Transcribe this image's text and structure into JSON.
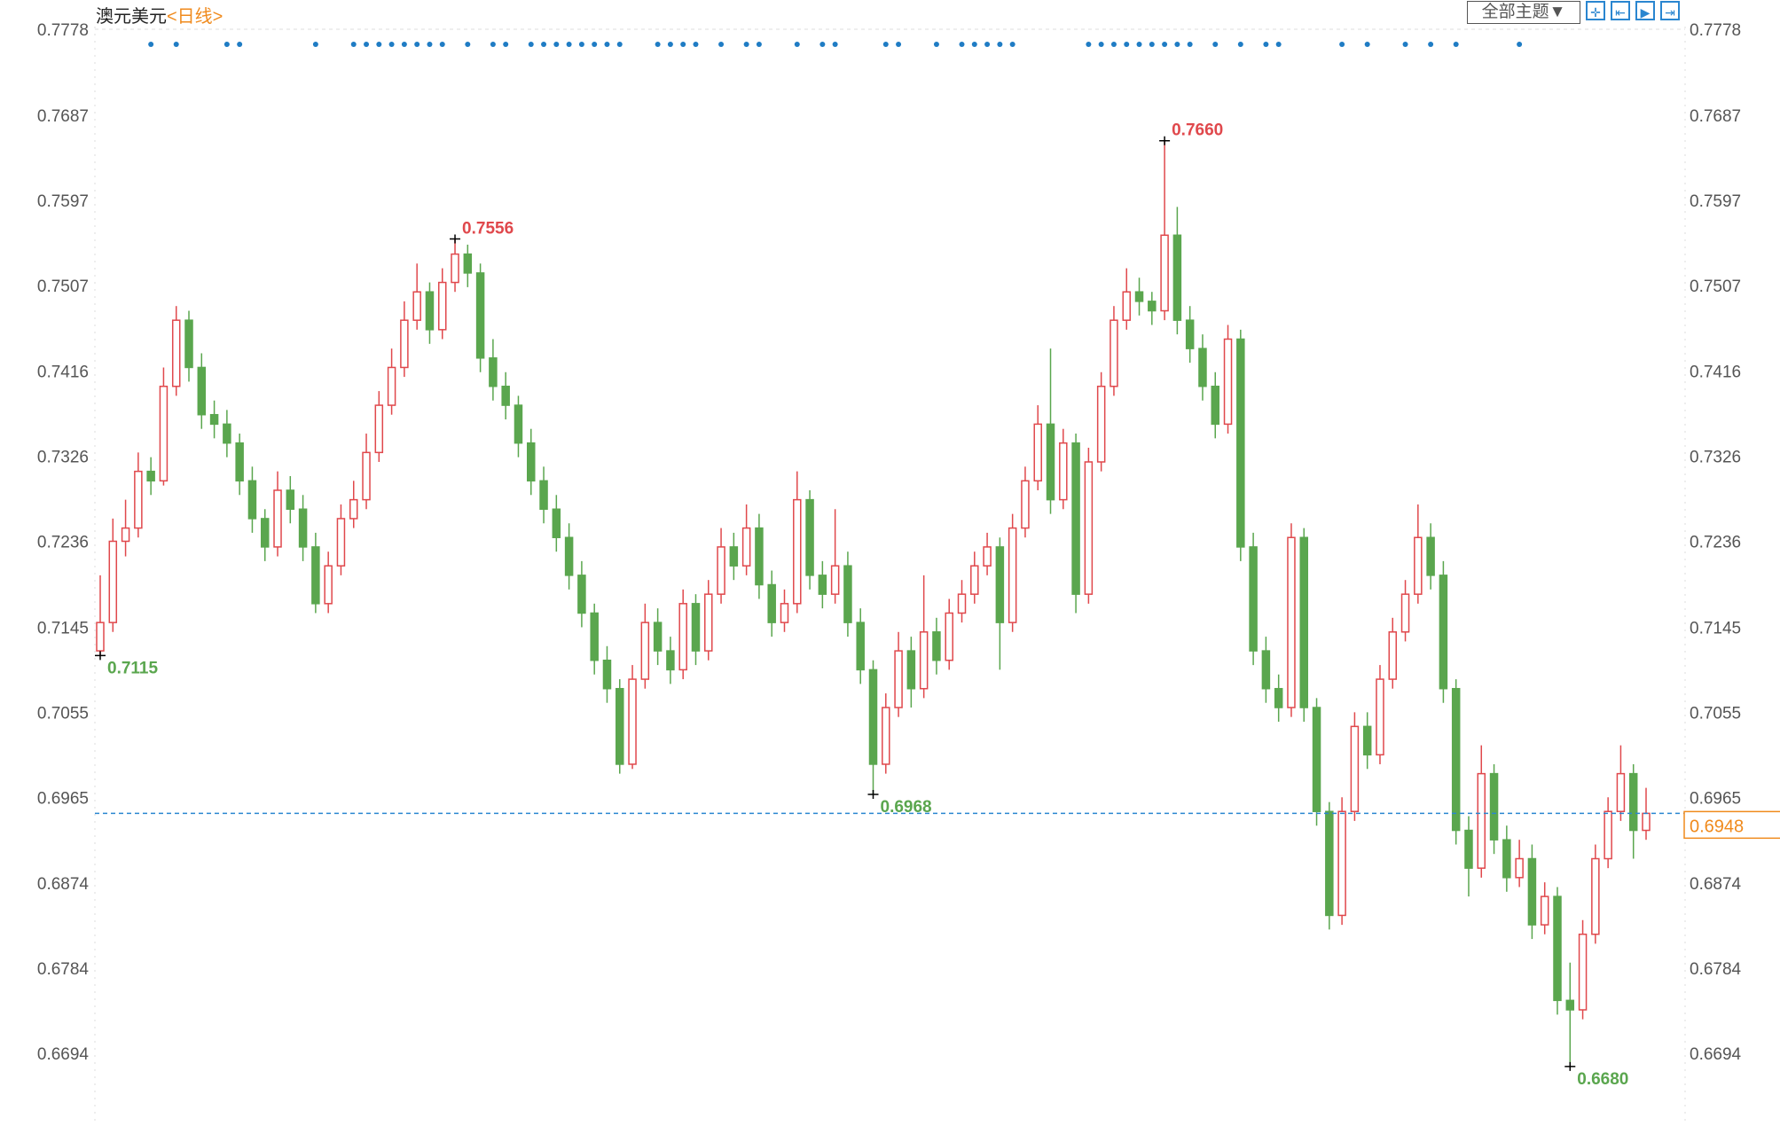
{
  "header": {
    "instrument": "澳元美元",
    "period": "<日线>",
    "theme_select": "全部主题▼",
    "tools": [
      {
        "name": "crosshair-icon",
        "glyph": "✛"
      },
      {
        "name": "zoom-range-icon",
        "glyph": "⇤"
      },
      {
        "name": "play-icon",
        "glyph": "▶"
      },
      {
        "name": "jump-end-icon",
        "glyph": "⇥"
      }
    ]
  },
  "colors": {
    "up": "#e0484c",
    "down": "#5aa64e",
    "price_line": "#2a86d0",
    "price_tag": "#f08a1c",
    "marker": "#1f7cc4",
    "high_label": "#e0484c",
    "low_label": "#5aa64e"
  },
  "chart_data": {
    "type": "candlestick",
    "title": "澳元美元",
    "ylim": [
      0.664,
      0.779
    ],
    "y_ticks": [
      "0.7778",
      "0.7687",
      "0.7597",
      "0.7507",
      "0.7416",
      "0.7326",
      "0.7236",
      "0.7145",
      "0.7055",
      "0.6965",
      "0.6874",
      "0.6784",
      "0.6694"
    ],
    "current_price": "0.6948",
    "ohlc": [
      [
        0.712,
        0.72,
        0.7115,
        0.715
      ],
      [
        0.715,
        0.726,
        0.714,
        0.7236
      ],
      [
        0.7236,
        0.728,
        0.722,
        0.725
      ],
      [
        0.725,
        0.733,
        0.724,
        0.731
      ],
      [
        0.731,
        0.7325,
        0.7285,
        0.73
      ],
      [
        0.73,
        0.742,
        0.7295,
        0.74
      ],
      [
        0.74,
        0.7485,
        0.739,
        0.747
      ],
      [
        0.747,
        0.748,
        0.7405,
        0.742
      ],
      [
        0.742,
        0.7435,
        0.7355,
        0.737
      ],
      [
        0.737,
        0.7385,
        0.7345,
        0.736
      ],
      [
        0.736,
        0.7375,
        0.7325,
        0.734
      ],
      [
        0.734,
        0.735,
        0.7285,
        0.73
      ],
      [
        0.73,
        0.7315,
        0.7245,
        0.726
      ],
      [
        0.726,
        0.727,
        0.7215,
        0.723
      ],
      [
        0.723,
        0.731,
        0.722,
        0.729
      ],
      [
        0.729,
        0.7305,
        0.7255,
        0.727
      ],
      [
        0.727,
        0.7285,
        0.7215,
        0.723
      ],
      [
        0.723,
        0.7245,
        0.716,
        0.717
      ],
      [
        0.717,
        0.7225,
        0.716,
        0.721
      ],
      [
        0.721,
        0.7275,
        0.72,
        0.726
      ],
      [
        0.726,
        0.73,
        0.725,
        0.728
      ],
      [
        0.728,
        0.735,
        0.727,
        0.733
      ],
      [
        0.733,
        0.7395,
        0.732,
        0.738
      ],
      [
        0.738,
        0.744,
        0.737,
        0.742
      ],
      [
        0.742,
        0.749,
        0.741,
        0.747
      ],
      [
        0.747,
        0.753,
        0.746,
        0.75
      ],
      [
        0.75,
        0.751,
        0.7445,
        0.746
      ],
      [
        0.746,
        0.7525,
        0.745,
        0.751
      ],
      [
        0.751,
        0.7556,
        0.75,
        0.754
      ],
      [
        0.754,
        0.755,
        0.7505,
        0.752
      ],
      [
        0.752,
        0.753,
        0.7415,
        0.743
      ],
      [
        0.743,
        0.745,
        0.7385,
        0.74
      ],
      [
        0.74,
        0.7415,
        0.7365,
        0.738
      ],
      [
        0.738,
        0.739,
        0.7325,
        0.734
      ],
      [
        0.734,
        0.7355,
        0.7285,
        0.73
      ],
      [
        0.73,
        0.7315,
        0.7255,
        0.727
      ],
      [
        0.727,
        0.7285,
        0.7225,
        0.724
      ],
      [
        0.724,
        0.7255,
        0.7185,
        0.72
      ],
      [
        0.72,
        0.7215,
        0.7145,
        0.716
      ],
      [
        0.716,
        0.717,
        0.7095,
        0.711
      ],
      [
        0.711,
        0.7125,
        0.7065,
        0.708
      ],
      [
        0.708,
        0.709,
        0.699,
        0.7
      ],
      [
        0.7,
        0.7105,
        0.6995,
        0.709
      ],
      [
        0.709,
        0.717,
        0.708,
        0.715
      ],
      [
        0.715,
        0.7165,
        0.7105,
        0.712
      ],
      [
        0.712,
        0.7135,
        0.7085,
        0.71
      ],
      [
        0.71,
        0.7185,
        0.709,
        0.717
      ],
      [
        0.717,
        0.718,
        0.7105,
        0.712
      ],
      [
        0.712,
        0.7195,
        0.711,
        0.718
      ],
      [
        0.718,
        0.725,
        0.717,
        0.723
      ],
      [
        0.723,
        0.7245,
        0.7195,
        0.721
      ],
      [
        0.721,
        0.7275,
        0.72,
        0.725
      ],
      [
        0.725,
        0.7265,
        0.7175,
        0.719
      ],
      [
        0.719,
        0.7205,
        0.7135,
        0.715
      ],
      [
        0.715,
        0.7185,
        0.714,
        0.717
      ],
      [
        0.717,
        0.731,
        0.716,
        0.728
      ],
      [
        0.728,
        0.729,
        0.7185,
        0.72
      ],
      [
        0.72,
        0.7215,
        0.7165,
        0.718
      ],
      [
        0.718,
        0.727,
        0.717,
        0.721
      ],
      [
        0.721,
        0.7225,
        0.7135,
        0.715
      ],
      [
        0.715,
        0.7165,
        0.7085,
        0.71
      ],
      [
        0.71,
        0.711,
        0.6968,
        0.7
      ],
      [
        0.7,
        0.7075,
        0.699,
        0.706
      ],
      [
        0.706,
        0.714,
        0.705,
        0.712
      ],
      [
        0.712,
        0.7135,
        0.706,
        0.708
      ],
      [
        0.708,
        0.72,
        0.707,
        0.714
      ],
      [
        0.714,
        0.7155,
        0.7095,
        0.711
      ],
      [
        0.711,
        0.7175,
        0.71,
        0.716
      ],
      [
        0.716,
        0.7195,
        0.715,
        0.718
      ],
      [
        0.718,
        0.7225,
        0.717,
        0.721
      ],
      [
        0.721,
        0.7245,
        0.72,
        0.723
      ],
      [
        0.723,
        0.724,
        0.71,
        0.715
      ],
      [
        0.715,
        0.7265,
        0.714,
        0.725
      ],
      [
        0.725,
        0.7315,
        0.724,
        0.73
      ],
      [
        0.73,
        0.738,
        0.729,
        0.736
      ],
      [
        0.736,
        0.744,
        0.7265,
        0.728
      ],
      [
        0.728,
        0.7355,
        0.727,
        0.734
      ],
      [
        0.734,
        0.735,
        0.716,
        0.718
      ],
      [
        0.718,
        0.7335,
        0.717,
        0.732
      ],
      [
        0.732,
        0.7415,
        0.731,
        0.74
      ],
      [
        0.74,
        0.7485,
        0.739,
        0.747
      ],
      [
        0.747,
        0.7525,
        0.746,
        0.75
      ],
      [
        0.75,
        0.7515,
        0.7475,
        0.749
      ],
      [
        0.749,
        0.75,
        0.7465,
        0.748
      ],
      [
        0.748,
        0.766,
        0.747,
        0.756
      ],
      [
        0.756,
        0.759,
        0.7455,
        0.747
      ],
      [
        0.747,
        0.7485,
        0.7425,
        0.744
      ],
      [
        0.744,
        0.7455,
        0.7385,
        0.74
      ],
      [
        0.74,
        0.7415,
        0.7345,
        0.736
      ],
      [
        0.736,
        0.7465,
        0.735,
        0.745
      ],
      [
        0.745,
        0.746,
        0.7215,
        0.723
      ],
      [
        0.723,
        0.7245,
        0.7105,
        0.712
      ],
      [
        0.712,
        0.7135,
        0.7065,
        0.708
      ],
      [
        0.708,
        0.7095,
        0.7045,
        0.706
      ],
      [
        0.706,
        0.7255,
        0.705,
        0.724
      ],
      [
        0.724,
        0.725,
        0.7045,
        0.706
      ],
      [
        0.706,
        0.707,
        0.6935,
        0.695
      ],
      [
        0.695,
        0.696,
        0.6825,
        0.684
      ],
      [
        0.684,
        0.6965,
        0.683,
        0.695
      ],
      [
        0.695,
        0.7055,
        0.694,
        0.704
      ],
      [
        0.704,
        0.7055,
        0.6995,
        0.701
      ],
      [
        0.701,
        0.7105,
        0.7,
        0.709
      ],
      [
        0.709,
        0.7155,
        0.708,
        0.714
      ],
      [
        0.714,
        0.7195,
        0.713,
        0.718
      ],
      [
        0.718,
        0.7275,
        0.717,
        0.724
      ],
      [
        0.724,
        0.7255,
        0.7185,
        0.72
      ],
      [
        0.72,
        0.7215,
        0.7065,
        0.708
      ],
      [
        0.708,
        0.709,
        0.6915,
        0.693
      ],
      [
        0.693,
        0.6945,
        0.686,
        0.689
      ],
      [
        0.689,
        0.702,
        0.688,
        0.699
      ],
      [
        0.699,
        0.7,
        0.6905,
        0.692
      ],
      [
        0.692,
        0.6935,
        0.6865,
        0.688
      ],
      [
        0.688,
        0.692,
        0.687,
        0.69
      ],
      [
        0.69,
        0.6915,
        0.6815,
        0.683
      ],
      [
        0.683,
        0.6875,
        0.682,
        0.686
      ],
      [
        0.686,
        0.687,
        0.6735,
        0.675
      ],
      [
        0.675,
        0.679,
        0.668,
        0.674
      ],
      [
        0.674,
        0.6835,
        0.673,
        0.682
      ],
      [
        0.682,
        0.6915,
        0.681,
        0.69
      ],
      [
        0.69,
        0.6965,
        0.689,
        0.695
      ],
      [
        0.695,
        0.702,
        0.694,
        0.699
      ],
      [
        0.699,
        0.7,
        0.69,
        0.693
      ],
      [
        0.693,
        0.6975,
        0.692,
        0.6948
      ]
    ],
    "annotations": [
      {
        "index": 0,
        "value": 0.7115,
        "label": "0.7115",
        "kind": "low"
      },
      {
        "index": 28,
        "value": 0.7556,
        "label": "0.7556",
        "kind": "high"
      },
      {
        "index": 61,
        "value": 0.6968,
        "label": "0.6968",
        "kind": "low"
      },
      {
        "index": 84,
        "value": 0.766,
        "label": "0.7660",
        "kind": "high"
      },
      {
        "index": 116,
        "value": 0.668,
        "label": "0.6680",
        "kind": "low"
      }
    ],
    "event_markers": [
      4,
      6,
      10,
      11,
      17,
      20,
      21,
      22,
      23,
      24,
      25,
      26,
      27,
      29,
      31,
      32,
      34,
      35,
      36,
      37,
      38,
      39,
      40,
      41,
      44,
      45,
      46,
      47,
      49,
      51,
      52,
      55,
      57,
      58,
      62,
      63,
      66,
      68,
      69,
      70,
      71,
      72,
      78,
      79,
      80,
      81,
      82,
      83,
      84,
      85,
      86,
      88,
      90,
      92,
      93,
      98,
      100,
      103,
      105,
      107,
      112
    ]
  }
}
